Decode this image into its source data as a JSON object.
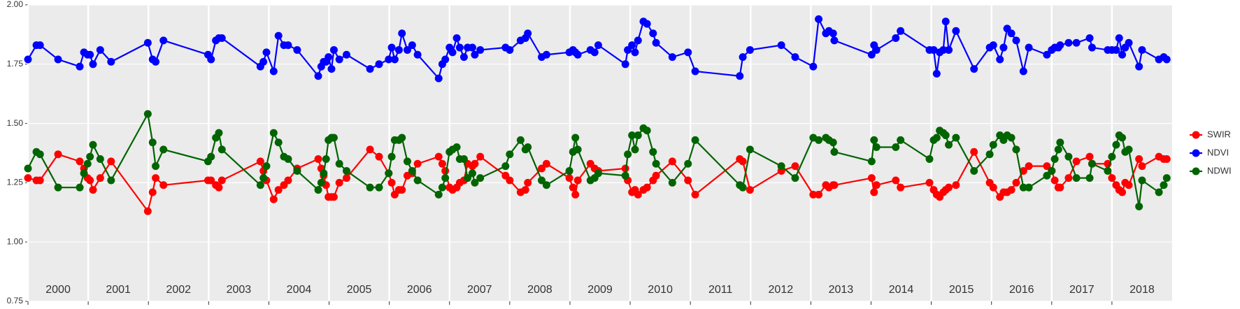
{
  "chart_data": {
    "type": "line",
    "x": [
      2000.0,
      2000.14,
      2000.2,
      2000.5,
      2000.86,
      2000.93,
      2000.99,
      2001.03,
      2001.08,
      2001.2,
      2001.38,
      2001.99,
      2002.07,
      2002.12,
      2002.25,
      2002.99,
      2003.04,
      2003.12,
      2003.17,
      2003.22,
      2003.86,
      2003.91,
      2003.96,
      2004.08,
      2004.16,
      2004.25,
      2004.32,
      2004.47,
      2004.82,
      2004.87,
      2004.91,
      2004.95,
      2004.99,
      2005.04,
      2005.08,
      2005.17,
      2005.29,
      2005.68,
      2005.83,
      2005.99,
      2006.04,
      2006.09,
      2006.16,
      2006.21,
      2006.3,
      2006.38,
      2006.47,
      2006.82,
      2006.88,
      2006.93,
      2007.0,
      2007.05,
      2007.12,
      2007.17,
      2007.24,
      2007.3,
      2007.38,
      2007.42,
      2007.51,
      2007.93,
      2008.0,
      2008.18,
      2008.26,
      2008.3,
      2008.53,
      2008.61,
      2008.99,
      2009.05,
      2009.09,
      2009.13,
      2009.34,
      2009.41,
      2009.47,
      2009.92,
      2009.96,
      2010.03,
      2010.08,
      2010.13,
      2010.22,
      2010.28,
      2010.38,
      2010.43,
      2010.7,
      2010.96,
      2011.08,
      2011.82,
      2011.87,
      2011.99,
      2012.51,
      2012.74,
      2013.04,
      2013.13,
      2013.25,
      2013.3,
      2013.37,
      2013.39,
      2014.01,
      2014.05,
      2014.09,
      2014.41,
      2014.49,
      2014.97,
      2015.04,
      2015.09,
      2015.14,
      2015.2,
      2015.24,
      2015.29,
      2015.41,
      2015.71,
      2015.97,
      2016.03,
      2016.14,
      2016.2,
      2016.26,
      2016.33,
      2016.41,
      2016.53,
      2016.62,
      2016.92,
      2017.0,
      2017.05,
      2017.11,
      2017.14,
      2017.28,
      2017.41,
      2017.63,
      2017.67,
      2017.93,
      2018.0,
      2018.07,
      2018.12,
      2018.17,
      2018.22,
      2018.28,
      2018.45,
      2018.5,
      2018.78,
      2018.86,
      2018.91
    ],
    "series": [
      {
        "name": "SWIR",
        "color": "#ff0000",
        "values": [
          1.27,
          1.26,
          1.26,
          1.37,
          1.34,
          1.31,
          1.27,
          1.26,
          1.22,
          1.27,
          1.34,
          1.13,
          1.21,
          1.27,
          1.24,
          1.26,
          1.26,
          1.24,
          1.23,
          1.26,
          1.34,
          1.3,
          1.26,
          1.18,
          1.22,
          1.24,
          1.26,
          1.31,
          1.35,
          1.31,
          1.28,
          1.24,
          1.19,
          1.19,
          1.19,
          1.25,
          1.27,
          1.39,
          1.36,
          1.29,
          1.25,
          1.2,
          1.22,
          1.22,
          1.28,
          1.29,
          1.33,
          1.36,
          1.33,
          1.3,
          1.23,
          1.22,
          1.23,
          1.25,
          1.26,
          1.33,
          1.32,
          1.33,
          1.36,
          1.28,
          1.26,
          1.21,
          1.22,
          1.25,
          1.31,
          1.33,
          1.27,
          1.23,
          1.2,
          1.26,
          1.33,
          1.31,
          1.3,
          1.31,
          1.26,
          1.21,
          1.22,
          1.2,
          1.22,
          1.23,
          1.26,
          1.28,
          1.34,
          1.26,
          1.2,
          1.35,
          1.34,
          1.22,
          1.3,
          1.32,
          1.2,
          1.2,
          1.24,
          1.23,
          1.24,
          1.24,
          1.27,
          1.21,
          1.24,
          1.26,
          1.23,
          1.25,
          1.22,
          1.2,
          1.19,
          1.21,
          1.22,
          1.23,
          1.24,
          1.38,
          1.25,
          1.23,
          1.19,
          1.21,
          1.21,
          1.22,
          1.25,
          1.3,
          1.32,
          1.32,
          1.3,
          1.26,
          1.23,
          1.23,
          1.27,
          1.34,
          1.36,
          1.33,
          1.33,
          1.27,
          1.24,
          1.22,
          1.21,
          1.25,
          1.24,
          1.35,
          1.32,
          1.36,
          1.35,
          1.35
        ]
      },
      {
        "name": "NDVI",
        "color": "#0000ff",
        "values": [
          1.77,
          1.83,
          1.83,
          1.77,
          1.74,
          1.8,
          1.79,
          1.79,
          1.75,
          1.81,
          1.76,
          1.84,
          1.77,
          1.76,
          1.85,
          1.79,
          1.77,
          1.85,
          1.86,
          1.86,
          1.74,
          1.76,
          1.8,
          1.72,
          1.87,
          1.83,
          1.83,
          1.81,
          1.7,
          1.74,
          1.76,
          1.76,
          1.78,
          1.73,
          1.81,
          1.77,
          1.79,
          1.73,
          1.75,
          1.77,
          1.82,
          1.77,
          1.81,
          1.88,
          1.81,
          1.83,
          1.79,
          1.69,
          1.75,
          1.77,
          1.82,
          1.8,
          1.86,
          1.82,
          1.78,
          1.82,
          1.82,
          1.79,
          1.81,
          1.82,
          1.81,
          1.85,
          1.86,
          1.88,
          1.78,
          1.79,
          1.8,
          1.81,
          1.8,
          1.79,
          1.81,
          1.8,
          1.83,
          1.75,
          1.81,
          1.83,
          1.8,
          1.85,
          1.93,
          1.92,
          1.88,
          1.84,
          1.78,
          1.8,
          1.72,
          1.7,
          1.78,
          1.81,
          1.83,
          1.78,
          1.74,
          1.94,
          1.88,
          1.89,
          1.88,
          1.85,
          1.79,
          1.83,
          1.81,
          1.86,
          1.89,
          1.81,
          1.81,
          1.71,
          1.8,
          1.81,
          1.93,
          1.81,
          1.89,
          1.73,
          1.82,
          1.83,
          1.77,
          1.82,
          1.9,
          1.88,
          1.85,
          1.72,
          1.82,
          1.79,
          1.81,
          1.82,
          1.82,
          1.83,
          1.84,
          1.84,
          1.86,
          1.82,
          1.81,
          1.81,
          1.81,
          1.86,
          1.79,
          1.82,
          1.84,
          1.74,
          1.81,
          1.77,
          1.78,
          1.77
        ]
      },
      {
        "name": "NDWI",
        "color": "#006400",
        "values": [
          1.31,
          1.38,
          1.37,
          1.23,
          1.23,
          1.29,
          1.33,
          1.36,
          1.41,
          1.35,
          1.26,
          1.54,
          1.42,
          1.32,
          1.39,
          1.34,
          1.36,
          1.44,
          1.46,
          1.39,
          1.24,
          1.27,
          1.32,
          1.46,
          1.42,
          1.36,
          1.35,
          1.3,
          1.22,
          1.25,
          1.29,
          1.35,
          1.43,
          1.44,
          1.44,
          1.33,
          1.3,
          1.23,
          1.23,
          1.29,
          1.36,
          1.43,
          1.43,
          1.44,
          1.34,
          1.3,
          1.26,
          1.2,
          1.23,
          1.27,
          1.38,
          1.39,
          1.4,
          1.35,
          1.35,
          1.27,
          1.29,
          1.25,
          1.27,
          1.32,
          1.37,
          1.43,
          1.39,
          1.4,
          1.26,
          1.24,
          1.3,
          1.38,
          1.44,
          1.39,
          1.26,
          1.27,
          1.29,
          1.28,
          1.37,
          1.45,
          1.39,
          1.45,
          1.48,
          1.47,
          1.38,
          1.33,
          1.25,
          1.33,
          1.43,
          1.24,
          1.23,
          1.39,
          1.32,
          1.27,
          1.44,
          1.43,
          1.44,
          1.43,
          1.42,
          1.38,
          1.34,
          1.43,
          1.4,
          1.4,
          1.43,
          1.35,
          1.43,
          1.44,
          1.47,
          1.46,
          1.45,
          1.41,
          1.44,
          1.3,
          1.37,
          1.41,
          1.45,
          1.43,
          1.45,
          1.44,
          1.39,
          1.23,
          1.23,
          1.28,
          1.3,
          1.35,
          1.39,
          1.42,
          1.36,
          1.27,
          1.27,
          1.33,
          1.3,
          1.36,
          1.41,
          1.45,
          1.44,
          1.38,
          1.39,
          1.15,
          1.26,
          1.21,
          1.24,
          1.27
        ]
      }
    ],
    "xlim": [
      2000,
      2019
    ],
    "xticks": [
      2000,
      2001,
      2002,
      2003,
      2004,
      2005,
      2006,
      2007,
      2008,
      2009,
      2010,
      2011,
      2012,
      2013,
      2014,
      2015,
      2016,
      2017,
      2018
    ],
    "ylim": [
      0.75,
      2.0
    ],
    "yticks": [
      0.75,
      {
        "value": 1.0,
        "label": "1.00"
      },
      1.25,
      {
        "value": 1.5,
        "label": "1.50"
      },
      1.75,
      {
        "value": 2.0,
        "label": "2.00"
      }
    ],
    "grid": true,
    "legend_position": "right"
  }
}
